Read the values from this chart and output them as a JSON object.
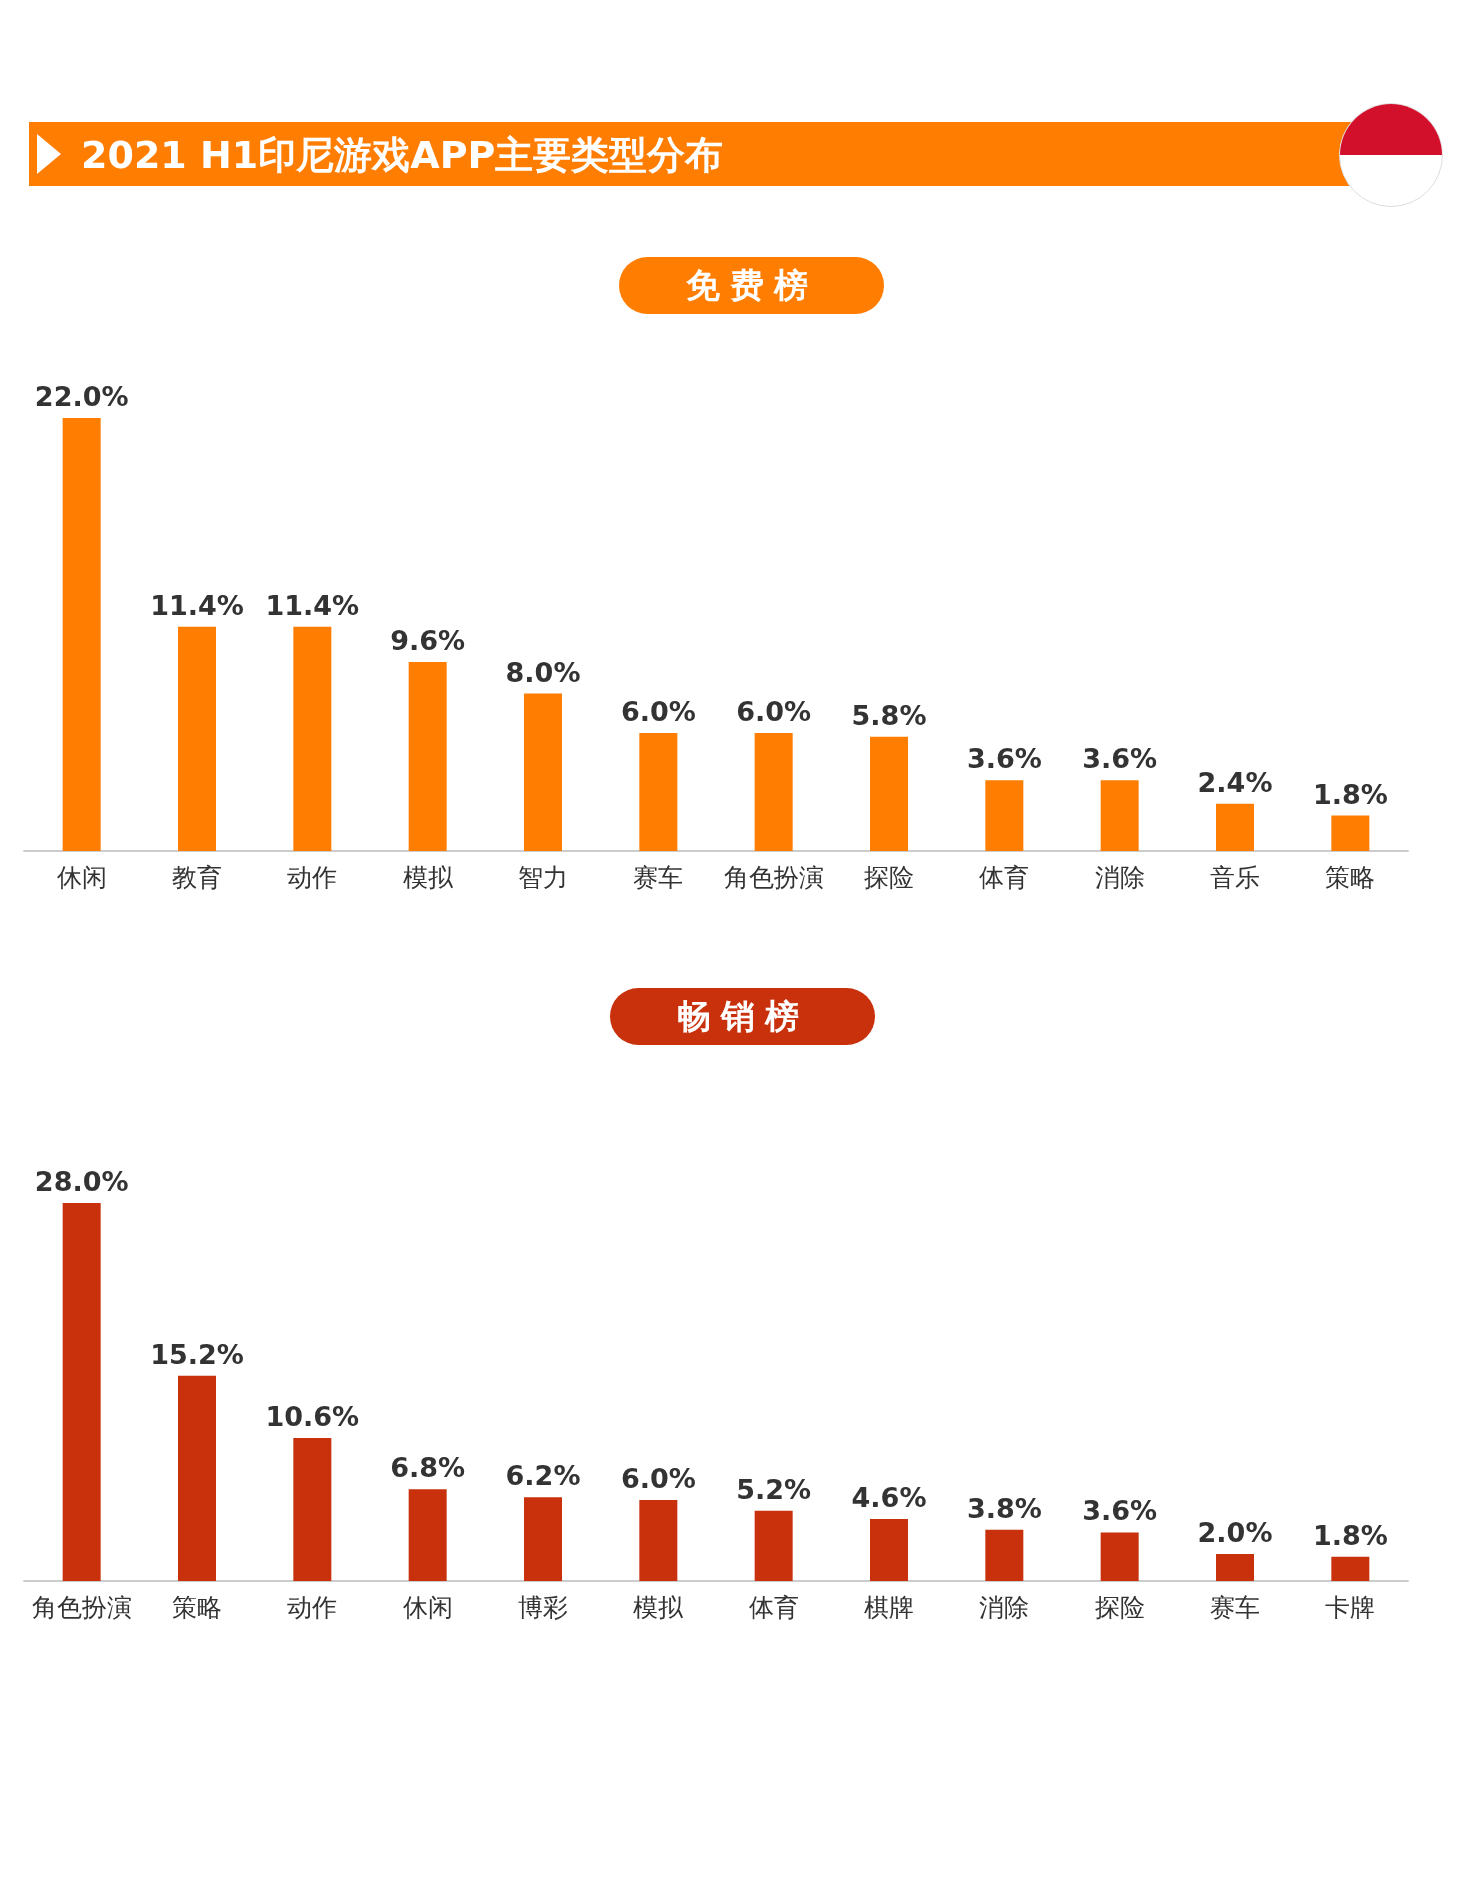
{
  "chart_data": [
    {
      "type": "bar",
      "title": "2021 H1印尼游戏APP主要类型分布",
      "subtitle": "免费榜",
      "color": "#ff7d00",
      "categories": [
        "休闲",
        "教育",
        "动作",
        "模拟",
        "智力",
        "赛车",
        "角色扮演",
        "探险",
        "体育",
        "消除",
        "音乐",
        "策略"
      ],
      "values": [
        22.0,
        11.4,
        11.4,
        9.6,
        8.0,
        6.0,
        6.0,
        5.8,
        3.6,
        3.6,
        2.4,
        1.8
      ],
      "value_labels": [
        "22.0%",
        "11.4%",
        "11.4%",
        "9.6%",
        "8.0%",
        "6.0%",
        "6.0%",
        "5.8%",
        "3.6%",
        "3.6%",
        "2.4%",
        "1.8%"
      ]
    },
    {
      "type": "bar",
      "title": "畅销榜",
      "color": "#c8310c",
      "categories": [
        "角色扮演",
        "策略",
        "动作",
        "休闲",
        "博彩",
        "模拟",
        "体育",
        "棋牌",
        "消除",
        "探险",
        "赛车",
        "卡牌"
      ],
      "values": [
        28.0,
        15.2,
        10.6,
        6.8,
        6.2,
        6.0,
        5.2,
        4.6,
        3.8,
        3.6,
        2.0,
        1.8
      ],
      "value_labels": [
        "28.0%",
        "15.2%",
        "10.6%",
        "6.8%",
        "6.2%",
        "6.0%",
        "5.2%",
        "4.6%",
        "3.8%",
        "3.6%",
        "2.0%",
        "1.8%"
      ]
    }
  ]
}
